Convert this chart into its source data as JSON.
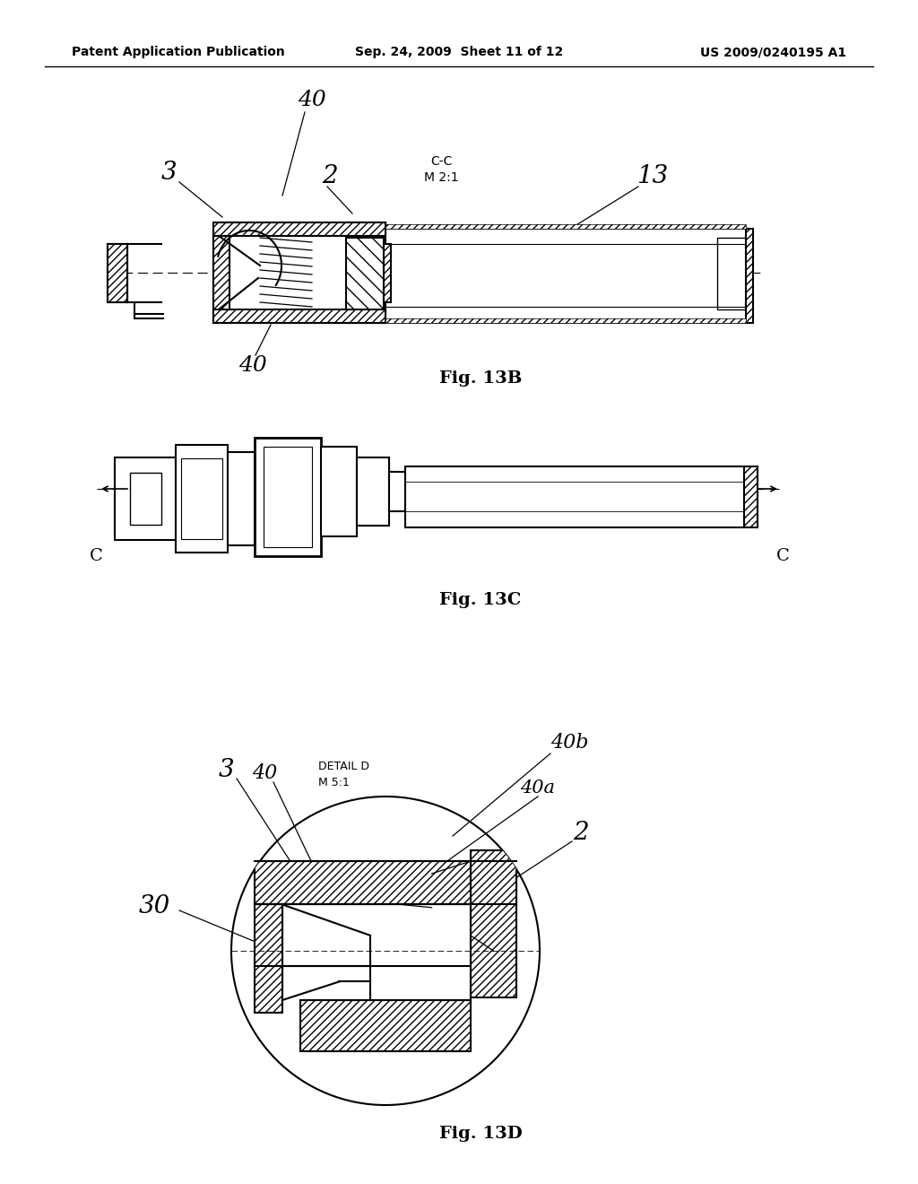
{
  "background_color": "#ffffff",
  "header_left": "Patent Application Publication",
  "header_center": "Sep. 24, 2009  Sheet 11 of 12",
  "header_right": "US 2009/0240195 A1",
  "header_fontsize": 10,
  "line_color": "#000000",
  "fig13b_label": "Fig. 13B",
  "fig13c_label": "Fig. 13C",
  "fig13d_label": "Fig. 13D"
}
